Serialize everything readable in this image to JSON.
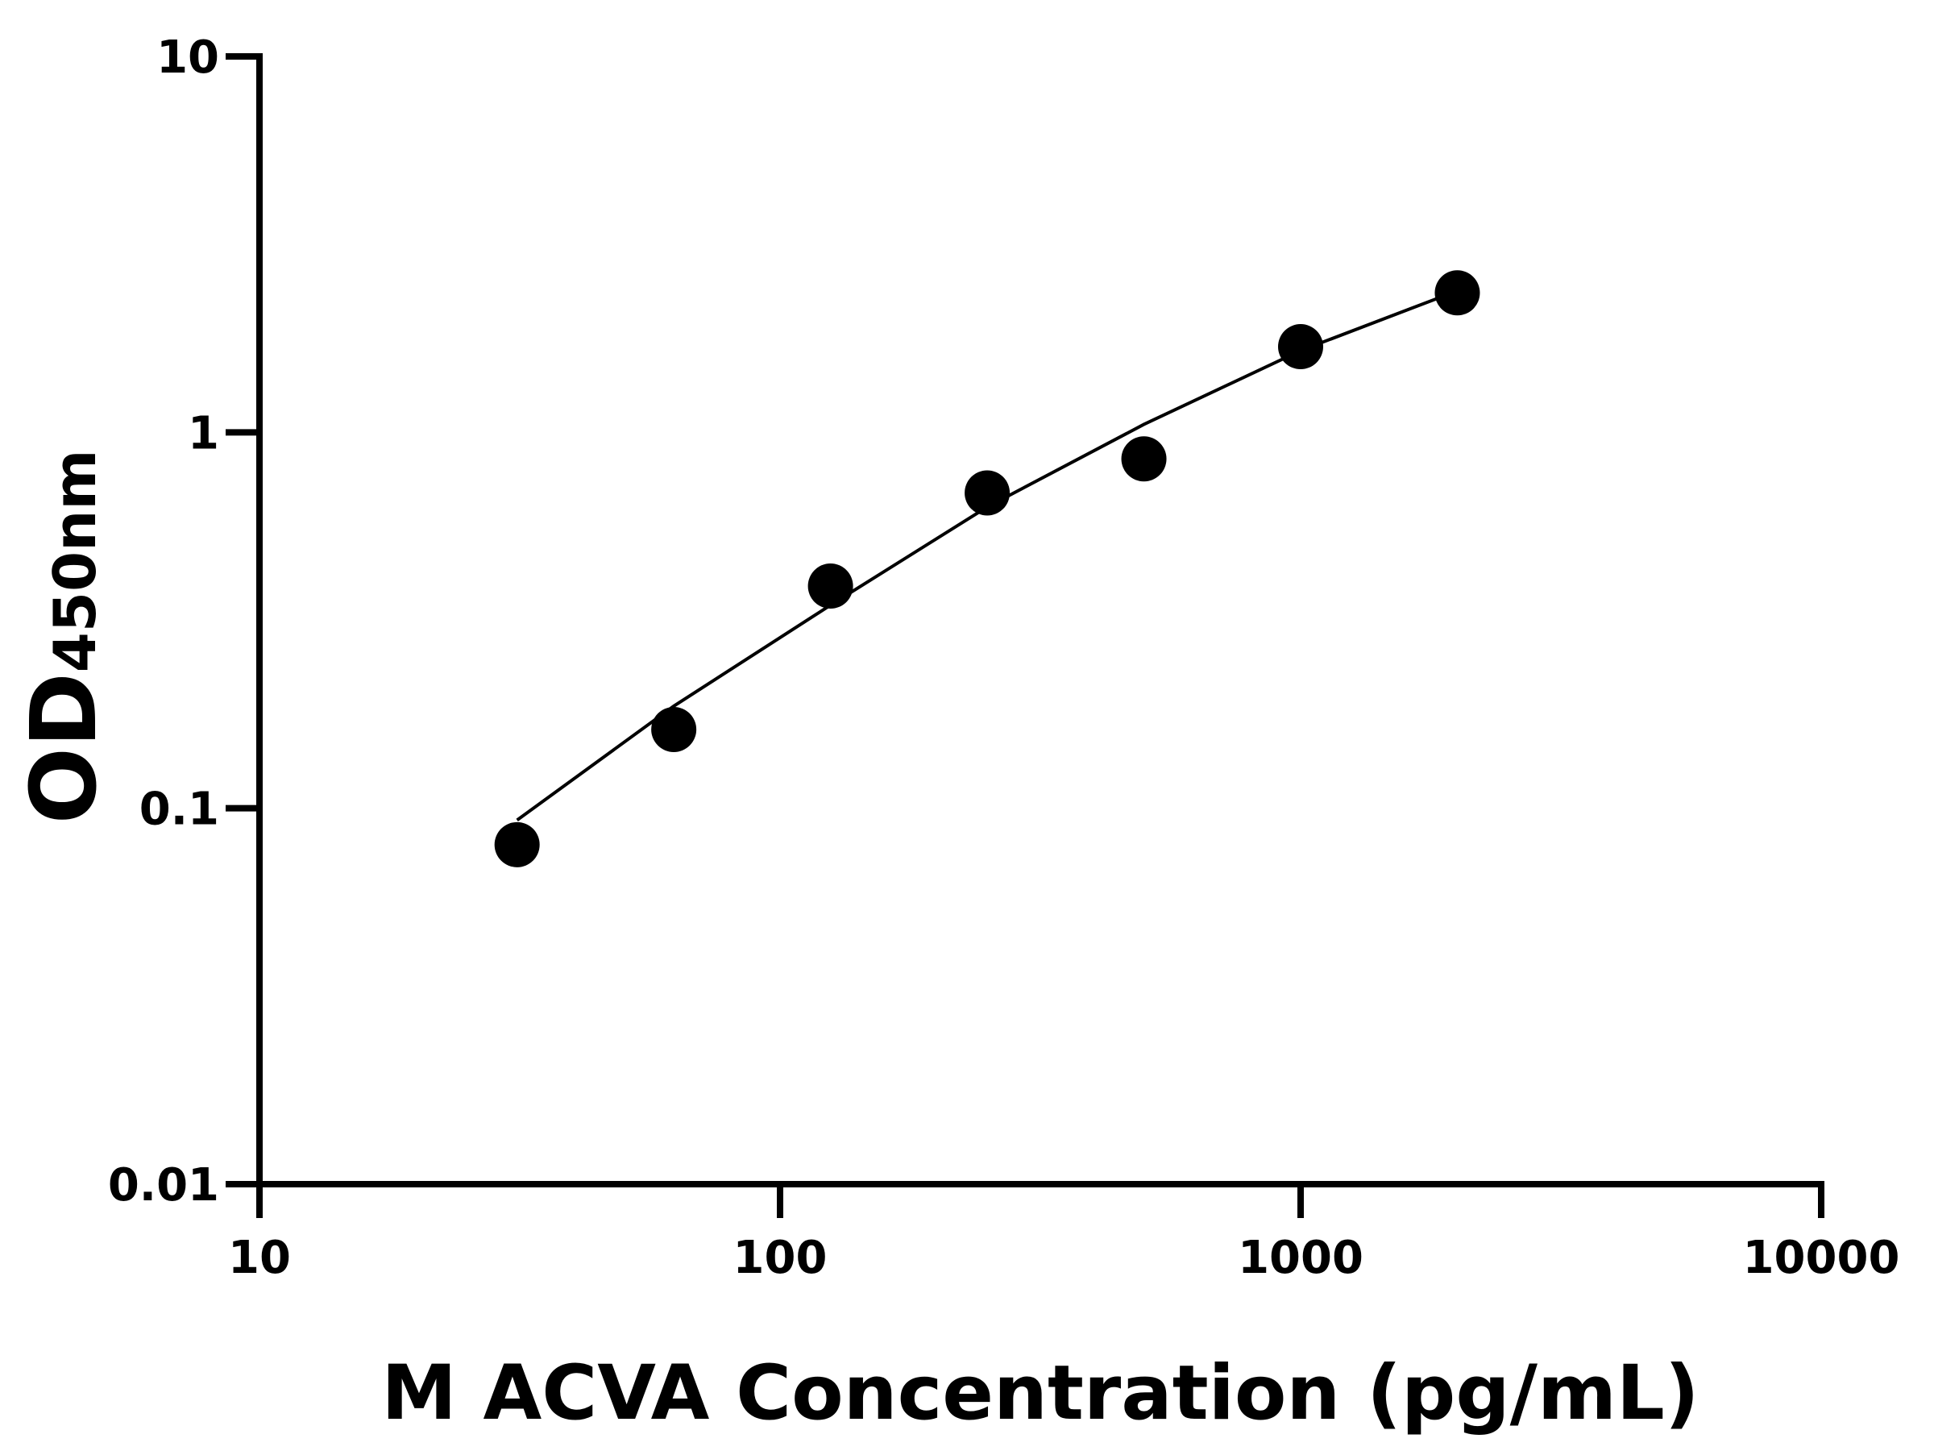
{
  "chart_data": {
    "type": "scatter",
    "x_label": "M ACVA Concentration (pg/mL)",
    "y_label": "OD",
    "y_label_subscript": "450nm",
    "xscale": "log",
    "yscale": "log",
    "xlim": [
      10,
      10000
    ],
    "xticks": [
      10,
      100,
      1000,
      10000
    ],
    "ylim": [
      0.01,
      10
    ],
    "yticks": [
      0.01,
      0.1,
      1,
      10
    ],
    "series": [
      {
        "mode": "markers",
        "color": "#000000",
        "x": [
          31.25,
          62.5,
          125,
          250,
          500,
          1000,
          2000
        ],
        "values": [
          0.08,
          0.162,
          0.39,
          0.69,
          0.85,
          1.69,
          2.35
        ]
      },
      {
        "mode": "line",
        "color": "#000000",
        "x": [
          31.25,
          62.5,
          125,
          250,
          500,
          1000,
          2000
        ],
        "values": [
          0.093,
          0.187,
          0.347,
          0.633,
          1.05,
          1.65,
          2.38
        ]
      }
    ]
  }
}
